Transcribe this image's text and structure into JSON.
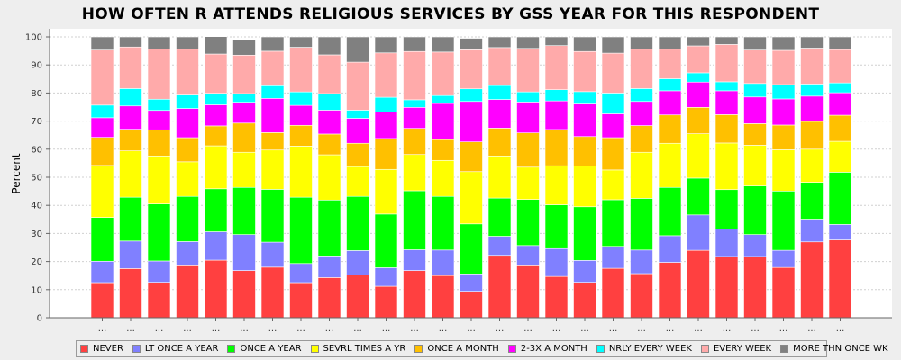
{
  "chart_data": {
    "type": "bar",
    "stacked": true,
    "title": "HOW OFTEN R ATTENDS RELIGIOUS SERVICES BY GSS YEAR FOR THIS RESPONDENT",
    "xlabel": "",
    "ylabel": "Percent",
    "ylim": [
      0,
      100
    ],
    "yticks": [
      0,
      10,
      20,
      30,
      40,
      50,
      60,
      70,
      80,
      90,
      100
    ],
    "grid": true,
    "legend_position": "bottom",
    "categories": [
      "...",
      "...",
      "...",
      "...",
      "...",
      "...",
      "...",
      "...",
      "...",
      "...",
      "...",
      "...",
      "...",
      "...",
      "...",
      "...",
      "...",
      "...",
      "...",
      "...",
      "...",
      "...",
      "...",
      "...",
      "...",
      "...",
      "..."
    ],
    "series": [
      {
        "name": "NEVER",
        "color": "#ff4040",
        "values": [
          12.5,
          17.5,
          12.6,
          18.8,
          20.5,
          16.8,
          18.0,
          12.5,
          14.3,
          15.2,
          11.2,
          16.8,
          15.0,
          9.4,
          22.2,
          18.8,
          14.7,
          12.6,
          17.6,
          15.7,
          19.7,
          24.0,
          21.8,
          21.8,
          17.9,
          27.0,
          27.7
        ]
      },
      {
        "name": "LT ONCE A YEAR",
        "color": "#8080ff",
        "values": [
          7.6,
          9.8,
          7.6,
          8.3,
          10.1,
          12.8,
          8.9,
          6.8,
          7.7,
          8.7,
          6.6,
          7.4,
          9.1,
          6.2,
          6.8,
          6.9,
          9.9,
          7.8,
          7.8,
          8.4,
          9.5,
          12.6,
          9.8,
          7.8,
          6.1,
          8.1,
          5.5
        ]
      },
      {
        "name": "ONCE A YEAR",
        "color": "#00ff00",
        "values": [
          15.6,
          15.6,
          20.3,
          16.1,
          15.3,
          16.8,
          18.8,
          23.6,
          19.9,
          19.3,
          19.1,
          21.0,
          19.1,
          17.8,
          13.6,
          16.4,
          15.6,
          19.1,
          16.6,
          18.4,
          17.2,
          13.1,
          14.0,
          17.3,
          21.1,
          13.1,
          18.6
        ]
      },
      {
        "name": "SEVRL TIMES A YR",
        "color": "#ffff00",
        "values": [
          18.5,
          16.5,
          17.1,
          12.3,
          15.3,
          12.5,
          14.0,
          18.2,
          16.1,
          10.6,
          15.9,
          12.9,
          12.8,
          18.6,
          15.0,
          11.5,
          13.9,
          14.5,
          10.6,
          16.4,
          15.7,
          15.8,
          16.6,
          14.5,
          14.7,
          11.8,
          11.0
        ]
      },
      {
        "name": "ONCE A MONTH",
        "color": "#ffc000",
        "values": [
          10.0,
          7.7,
          9.3,
          8.6,
          7.1,
          10.4,
          6.2,
          7.4,
          7.4,
          8.3,
          11.0,
          9.3,
          7.4,
          10.6,
          9.9,
          12.2,
          12.9,
          10.5,
          11.5,
          9.5,
          10.1,
          9.4,
          10.1,
          7.7,
          8.8,
          9.9,
          9.3
        ]
      },
      {
        "name": "2-3X A MONTH",
        "color": "#ff00ff",
        "values": [
          7.0,
          8.3,
          6.9,
          10.4,
          7.5,
          7.4,
          12.2,
          7.1,
          8.5,
          8.9,
          9.5,
          7.5,
          12.9,
          14.4,
          10.2,
          11.0,
          10.2,
          11.6,
          8.5,
          8.6,
          8.6,
          9.0,
          8.5,
          9.5,
          9.3,
          9.0,
          8.0
        ]
      },
      {
        "name": "NRLY EVERY WEEK",
        "color": "#00ffff",
        "values": [
          4.5,
          6.2,
          4.0,
          4.8,
          4.1,
          3.1,
          4.5,
          4.8,
          5.9,
          2.9,
          5.2,
          2.7,
          2.8,
          4.5,
          5.0,
          3.6,
          4.0,
          4.4,
          7.4,
          4.6,
          4.3,
          3.3,
          3.2,
          4.8,
          5.1,
          4.3,
          3.5
        ]
      },
      {
        "name": "EVERY WEEK",
        "color": "#ffaaaa",
        "values": [
          19.6,
          14.8,
          17.9,
          16.3,
          14.0,
          13.7,
          12.3,
          15.9,
          13.8,
          17.1,
          15.8,
          17.2,
          15.5,
          13.9,
          13.5,
          15.5,
          15.7,
          14.3,
          14.2,
          14.0,
          10.5,
          9.6,
          13.3,
          11.9,
          12.2,
          12.8,
          11.9
        ]
      },
      {
        "name": "MORE THN ONCE WK",
        "color": "#808080",
        "values": [
          4.7,
          3.6,
          4.3,
          4.4,
          6.2,
          5.5,
          5.1,
          3.7,
          6.4,
          9.0,
          5.7,
          5.2,
          5.4,
          4.1,
          3.8,
          4.1,
          3.1,
          5.2,
          5.8,
          4.4,
          4.4,
          3.2,
          2.7,
          4.7,
          4.8,
          4.0,
          4.5
        ]
      }
    ]
  }
}
